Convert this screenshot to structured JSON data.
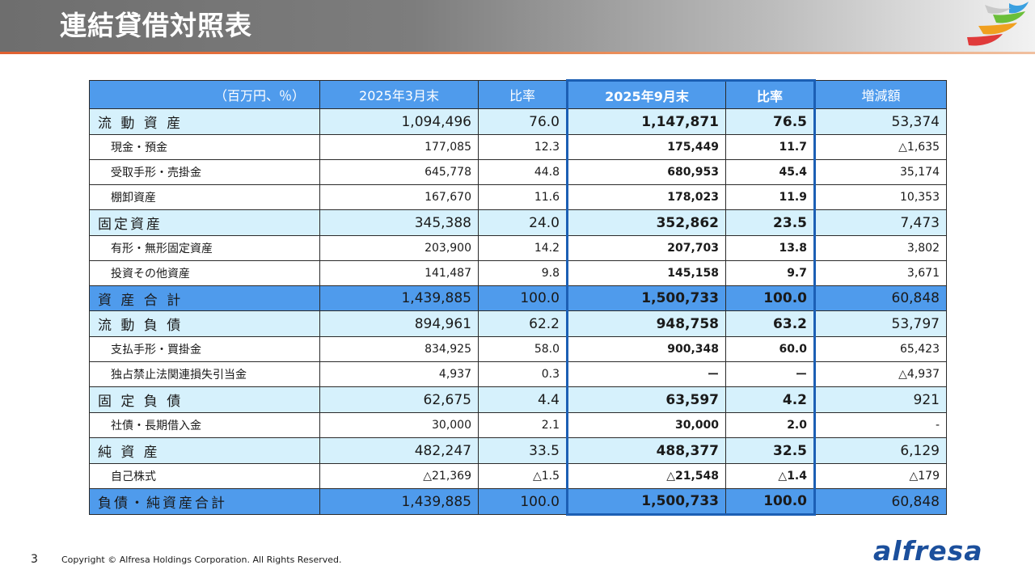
{
  "header": {
    "title": "連結貸借対照表"
  },
  "table": {
    "columns": [
      "（百万円、％）",
      "2025年3月末",
      "比率",
      "2025年9月末",
      "比率",
      "増減額"
    ],
    "rows": [
      {
        "kind": "main",
        "label": "流 動 資 産",
        "v1": "1,094,496",
        "r1": "76.0",
        "v2": "1,147,871",
        "r2": "76.5",
        "d": "53,374"
      },
      {
        "kind": "sub",
        "label": "現金・預金",
        "v1": "177,085",
        "r1": "12.3",
        "v2": "175,449",
        "r2": "11.7",
        "d": "△1,635"
      },
      {
        "kind": "sub",
        "label": "受取手形・売掛金",
        "v1": "645,778",
        "r1": "44.8",
        "v2": "680,953",
        "r2": "45.4",
        "d": "35,174"
      },
      {
        "kind": "sub",
        "label": "棚卸資産",
        "v1": "167,670",
        "r1": "11.6",
        "v2": "178,023",
        "r2": "11.9",
        "d": "10,353"
      },
      {
        "kind": "main",
        "label": "固定資産",
        "v1": "345,388",
        "r1": "24.0",
        "v2": "352,862",
        "r2": "23.5",
        "d": "7,473"
      },
      {
        "kind": "sub",
        "label": "有形・無形固定資産",
        "v1": "203,900",
        "r1": "14.2",
        "v2": "207,703",
        "r2": "13.8",
        "d": "3,802"
      },
      {
        "kind": "sub",
        "label": "投資その他資産",
        "v1": "141,487",
        "r1": "9.8",
        "v2": "145,158",
        "r2": "9.7",
        "d": "3,671"
      },
      {
        "kind": "total",
        "label": "資 産 合 計",
        "v1": "1,439,885",
        "r1": "100.0",
        "v2": "1,500,733",
        "r2": "100.0",
        "d": "60,848"
      },
      {
        "kind": "main",
        "label": "流 動 負 債",
        "v1": "894,961",
        "r1": "62.2",
        "v2": "948,758",
        "r2": "63.2",
        "d": "53,797"
      },
      {
        "kind": "sub",
        "label": "支払手形・買掛金",
        "v1": "834,925",
        "r1": "58.0",
        "v2": "900,348",
        "r2": "60.0",
        "d": "65,423"
      },
      {
        "kind": "sub",
        "label": "独占禁止法関連損失引当金",
        "v1": "4,937",
        "r1": "0.3",
        "v2": "ー",
        "r2": "ー",
        "d": "△4,937"
      },
      {
        "kind": "main",
        "label": "固 定 負 債",
        "v1": "62,675",
        "r1": "4.4",
        "v2": "63,597",
        "r2": "4.2",
        "d": "921"
      },
      {
        "kind": "sub",
        "label": "社債・長期借入金",
        "v1": "30,000",
        "r1": "2.1",
        "v2": "30,000",
        "r2": "2.0",
        "d": "-"
      },
      {
        "kind": "main",
        "label": "純 資 産",
        "v1": "482,247",
        "r1": "33.5",
        "v2": "488,377",
        "r2": "32.5",
        "d": "6,129"
      },
      {
        "kind": "sub",
        "label": "自己株式",
        "v1": "△21,369",
        "r1": "△1.5",
        "v2": "△21,548",
        "r2": "△1.4",
        "d": "△179"
      },
      {
        "kind": "total",
        "label": "負債・純資産合計",
        "v1": "1,439,885",
        "r1": "100.0",
        "v2": "1,500,733",
        "r2": "100.0",
        "d": "60,848"
      }
    ]
  },
  "footer": {
    "page_number": "3",
    "copyright": "Copyright © Alfresa Holdings Corporation. All Rights Reserved.",
    "brand": "alfresa"
  }
}
